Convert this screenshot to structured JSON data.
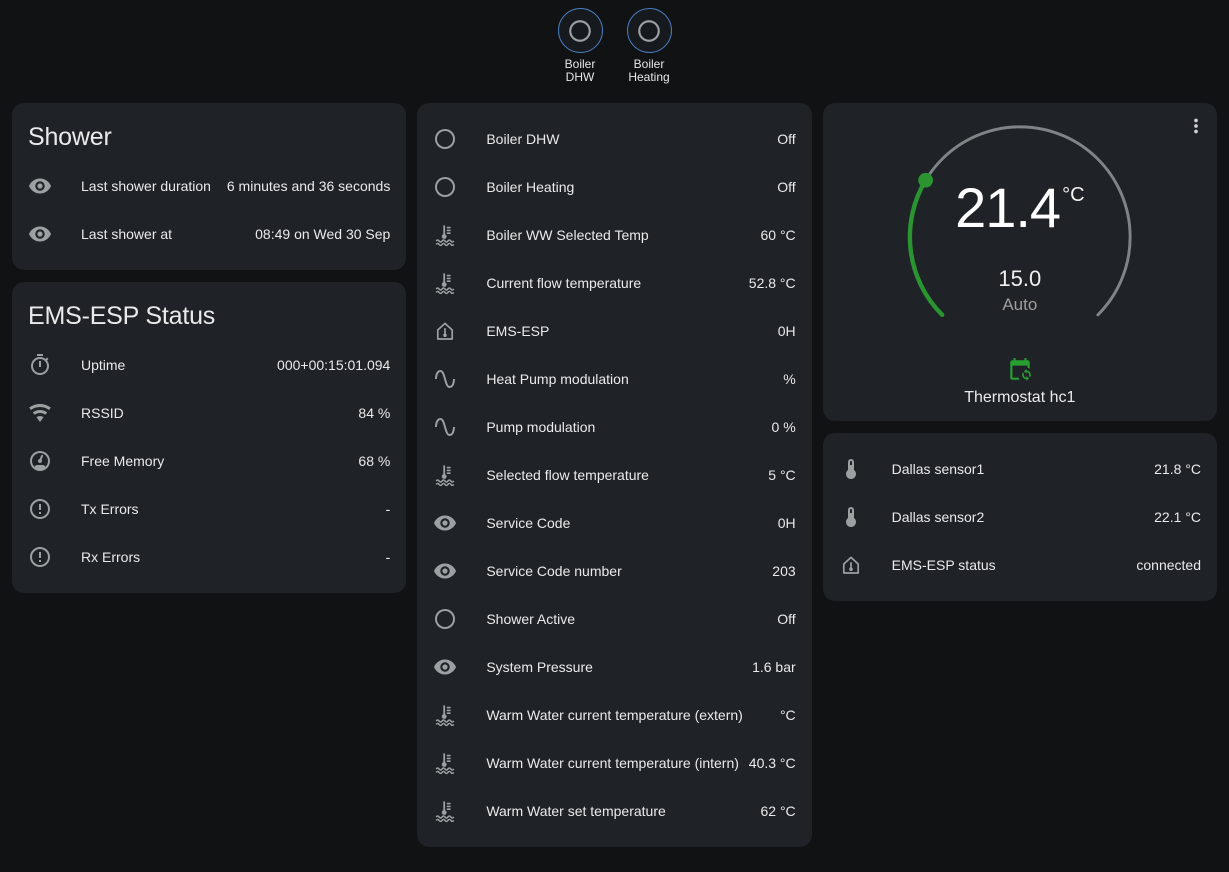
{
  "theme": {
    "background": "#101214",
    "card": "#1f2226",
    "text": "#e9eaec",
    "secondary_text": "#9e9e9e",
    "icon_color": "#9da0a2",
    "badge_border": "#4a7dbd",
    "green": "#27a030",
    "arc_green": "#2a9431",
    "track_gray": "#7f8487"
  },
  "badges": [
    {
      "label": "Boiler DHW",
      "icon": "circle-outline"
    },
    {
      "label": "Boiler Heating",
      "icon": "circle-outline"
    }
  ],
  "cards": {
    "shower": {
      "title": "Shower",
      "rows": [
        {
          "icon": "eye",
          "label": "Last shower duration",
          "value": "6 minutes and 36 seconds"
        },
        {
          "icon": "eye",
          "label": "Last shower at",
          "value": "08:49 on Wed 30 Sep"
        }
      ]
    },
    "ems_status": {
      "title": "EMS-ESP Status",
      "rows": [
        {
          "icon": "timer",
          "label": "Uptime",
          "value": "000+00:15:01.094"
        },
        {
          "icon": "wifi",
          "label": "RSSID",
          "value": "84 %"
        },
        {
          "icon": "gauge",
          "label": "Free Memory",
          "value": "68 %"
        },
        {
          "icon": "alert-circle",
          "label": "Tx Errors",
          "value": "-"
        },
        {
          "icon": "alert-circle",
          "label": "Rx Errors",
          "value": "-"
        }
      ]
    },
    "entities": {
      "rows": [
        {
          "icon": "circle-outline",
          "label": "Boiler DHW",
          "value": "Off"
        },
        {
          "icon": "circle-outline",
          "label": "Boiler Heating",
          "value": "Off"
        },
        {
          "icon": "coolant-temperature",
          "label": "Boiler WW Selected Temp",
          "value": "60 °C"
        },
        {
          "icon": "coolant-temperature",
          "label": "Current flow temperature",
          "value": "52.8 °C"
        },
        {
          "icon": "home-thermometer",
          "label": "EMS-ESP",
          "value": "0H"
        },
        {
          "icon": "sine-wave",
          "label": "Heat Pump modulation",
          "value": "%"
        },
        {
          "icon": "sine-wave",
          "label": "Pump modulation",
          "value": "0 %"
        },
        {
          "icon": "coolant-temperature",
          "label": "Selected flow temperature",
          "value": "5 °C"
        },
        {
          "icon": "eye",
          "label": "Service Code",
          "value": "0H"
        },
        {
          "icon": "eye",
          "label": "Service Code number",
          "value": "203"
        },
        {
          "icon": "circle-outline",
          "label": "Shower Active",
          "value": "Off"
        },
        {
          "icon": "eye",
          "label": "System Pressure",
          "value": "1.6 bar"
        },
        {
          "icon": "coolant-temperature",
          "label": "Warm Water current temperature (extern)",
          "value": "°C"
        },
        {
          "icon": "coolant-temperature",
          "label": "Warm Water current temperature (intern)",
          "value": "40.3 °C"
        },
        {
          "icon": "coolant-temperature",
          "label": "Warm Water set temperature",
          "value": "62 °C"
        }
      ]
    },
    "thermostat": {
      "current_temperature": "21.4",
      "unit": "°C",
      "target_temperature": "15.0",
      "mode": "Auto",
      "name": "Thermostat hc1"
    },
    "sensors": {
      "rows": [
        {
          "icon": "thermometer",
          "label": "Dallas sensor1",
          "value": "21.8 °C"
        },
        {
          "icon": "thermometer",
          "label": "Dallas sensor2",
          "value": "22.1 °C"
        },
        {
          "icon": "home-thermometer",
          "label": "EMS-ESP status",
          "value": "connected"
        }
      ]
    }
  }
}
